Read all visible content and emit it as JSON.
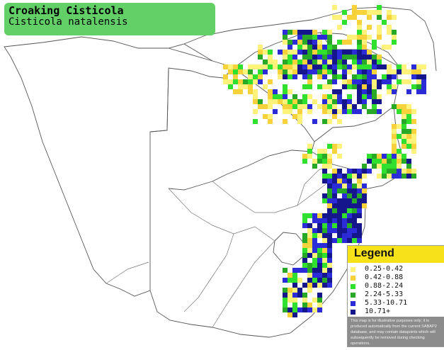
{
  "title": {
    "common_name": "Croaking Cisticola",
    "scientific_name": "Cisticola natalensis"
  },
  "legend": {
    "title": "Legend",
    "items": [
      {
        "range": "0.25-0.42",
        "color": "#fff27a"
      },
      {
        "range": "0.42-0.88",
        "color": "#f7d23a"
      },
      {
        "range": "0.88-2.24",
        "color": "#2fe02f"
      },
      {
        "range": "2.24-5.33",
        "color": "#27a827"
      },
      {
        "range": "5.33-10.71",
        "color": "#2b2bd8"
      },
      {
        "range": "10.71+",
        "color": "#15158c"
      }
    ],
    "disclaimer": "This map is for illustrative purposes only; it is produced automatically from the current SABAP2 database, and may contain datapoints which will subsequently be removed during checking operations."
  },
  "colors": {
    "title_box": "#62d067",
    "legend_header": "#f7e21a",
    "land": "#ffffff",
    "border": "#555555"
  }
}
